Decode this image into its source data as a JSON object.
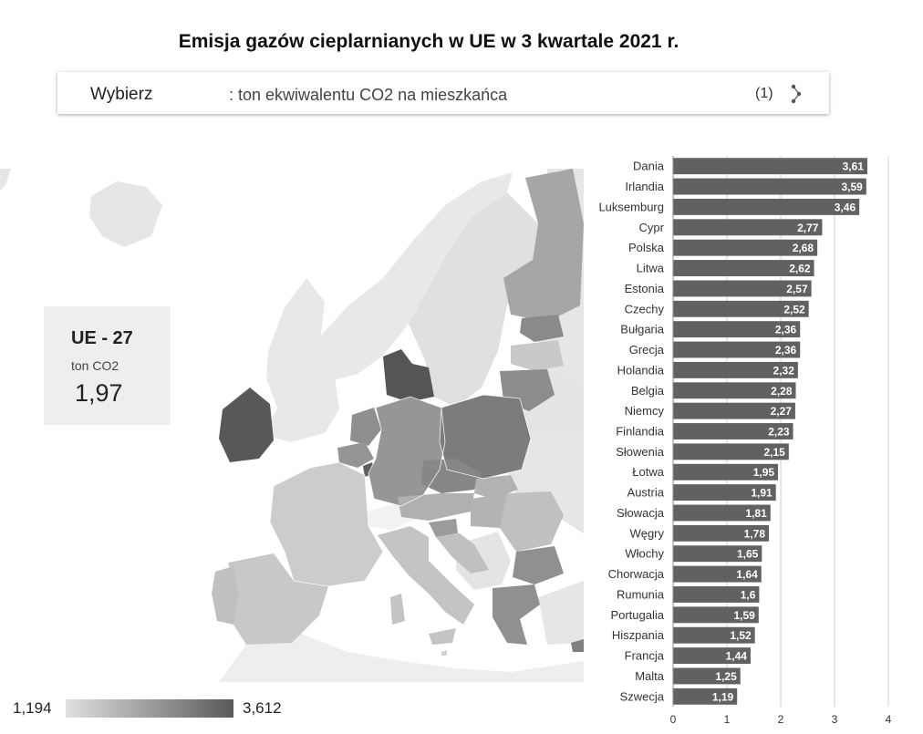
{
  "title": "Emisja gazów cieplarnianych w UE w 3 kwartale 2021 r.",
  "selector": {
    "label": "Wybierz",
    "value": ": ton ekwiwalentu CO2 na mieszkańca",
    "count": "(1)",
    "icon": "more-vertical-icon"
  },
  "kpi": {
    "title": "UE - 27",
    "unit": "ton CO2",
    "value": "1,97"
  },
  "legend": {
    "min": "1,194",
    "max": "3,612",
    "color_low": "#e0e0e0",
    "color_high": "#595959"
  },
  "chart_data": {
    "type": "bar",
    "orientation": "horizontal",
    "categories": [
      "Dania",
      "Irlandia",
      "Luksemburg",
      "Cypr",
      "Polska",
      "Litwa",
      "Estonia",
      "Czechy",
      "Bułgaria",
      "Grecja",
      "Holandia",
      "Belgia",
      "Niemcy",
      "Finlandia",
      "Słowenia",
      "Łotwa",
      "Austria",
      "Słowacja",
      "Węgry",
      "Włochy",
      "Chorwacja",
      "Rumunia",
      "Portugalia",
      "Hiszpania",
      "Francja",
      "Malta",
      "Szwecja"
    ],
    "values": [
      3.61,
      3.59,
      3.46,
      2.77,
      2.68,
      2.62,
      2.57,
      2.52,
      2.36,
      2.36,
      2.32,
      2.28,
      2.27,
      2.23,
      2.15,
      1.95,
      1.91,
      1.81,
      1.78,
      1.65,
      1.64,
      1.6,
      1.59,
      1.52,
      1.44,
      1.25,
      1.19
    ],
    "value_labels": [
      "3,61",
      "3,59",
      "3,46",
      "2,77",
      "2,68",
      "2,62",
      "2,57",
      "2,52",
      "2,36",
      "2,36",
      "2,32",
      "2,28",
      "2,27",
      "2,23",
      "2,15",
      "1,95",
      "1,91",
      "1,81",
      "1,78",
      "1,65",
      "1,64",
      "1,6",
      "1,59",
      "1,52",
      "1,44",
      "1,25",
      "1,19"
    ],
    "xlim": [
      0,
      4
    ],
    "xticks": [
      0,
      1,
      2,
      3,
      4
    ],
    "grid": true,
    "bar_color": "#616161"
  }
}
